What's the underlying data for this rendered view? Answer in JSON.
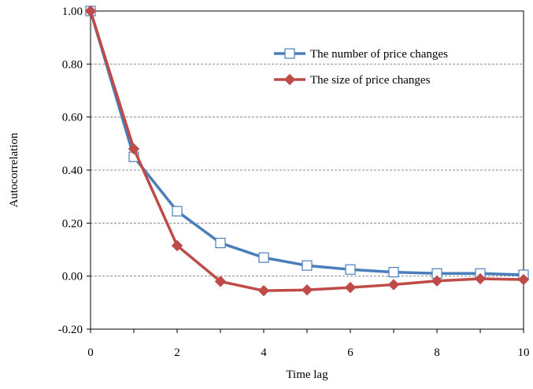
{
  "chart_data": {
    "type": "line",
    "xlabel": "Time lag",
    "ylabel": "Autocorrelation",
    "xlim": [
      0,
      10
    ],
    "ylim": [
      -0.2,
      1.0
    ],
    "x_ticks": [
      0,
      2,
      4,
      6,
      8,
      10
    ],
    "y_ticks": [
      "-0.20",
      "0.00",
      "0.20",
      "0.40",
      "0.60",
      "0.80",
      "1.00"
    ],
    "grid": "horizontal dashed",
    "legend_position": "top-right",
    "x": [
      0,
      1,
      2,
      3,
      4,
      5,
      6,
      7,
      8,
      9,
      10
    ],
    "series": [
      {
        "name": "The number of price changes",
        "color": "#4a7ebb",
        "marker": "open-square",
        "values": [
          1.0,
          0.45,
          0.245,
          0.125,
          0.07,
          0.04,
          0.025,
          0.015,
          0.01,
          0.01,
          0.005
        ]
      },
      {
        "name": "The size of price changes",
        "color": "#be4b48",
        "marker": "filled-diamond",
        "values": [
          1.0,
          0.48,
          0.115,
          -0.02,
          -0.055,
          -0.052,
          -0.043,
          -0.032,
          -0.018,
          -0.01,
          -0.013
        ]
      }
    ]
  }
}
